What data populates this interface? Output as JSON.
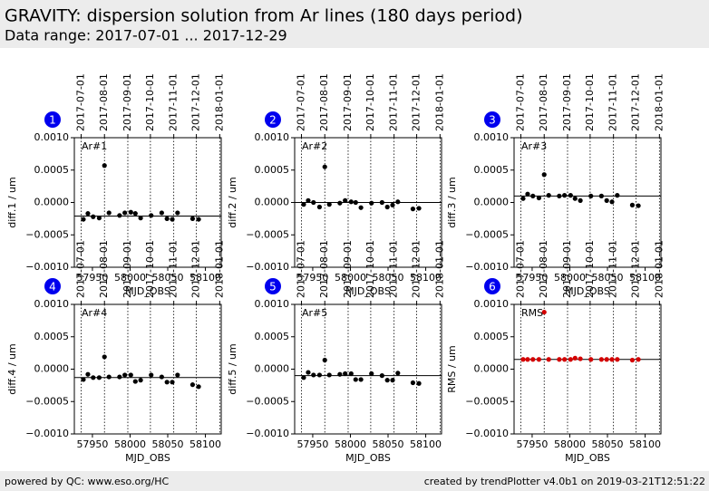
{
  "header": {
    "title": "GRAVITY: dispersion solution from Ar lines (180 days period)",
    "subtitle": "Data range: 2017-07-01 ... 2017-12-29"
  },
  "footer": {
    "left": "powered by QC: www.eso.org/HC",
    "right": "created by trendPlotter v4.0b1 on 2019-03-21T12:51:22"
  },
  "chart_data": [
    {
      "type": "scatter",
      "badge": "1",
      "label": "Ar#1",
      "ylabel": "diff.1 / um",
      "xlabel": "MJD_OBS",
      "color": "#000000",
      "x": [
        57938,
        57944,
        57951,
        57959,
        57966,
        57972,
        57986,
        57993,
        58001,
        58007,
        58014,
        58028,
        58042,
        58049,
        58056,
        58063,
        58083,
        58091
      ],
      "values": [
        -0.00026,
        -0.00017,
        -0.00022,
        -0.00024,
        0.00057,
        -0.00016,
        -0.0002,
        -0.00016,
        -0.00015,
        -0.00017,
        -0.00024,
        -0.0002,
        -0.00016,
        -0.00025,
        -0.00026,
        -0.00016,
        -0.00025,
        -0.00026
      ],
      "reference": -0.00021,
      "xlim": [
        57926,
        58121
      ],
      "xticks": [
        57950,
        58000,
        58050,
        58100
      ],
      "ylim": [
        -0.001,
        0.001
      ],
      "yticks": [
        {
          "value": -0.001,
          "label": "−0.0010"
        },
        {
          "value": -0.0005,
          "label": "−0.0005"
        },
        {
          "value": 0,
          "label": "0.0000"
        },
        {
          "value": 0.0005,
          "label": "0.0005"
        },
        {
          "value": 0.001,
          "label": "0.0010"
        }
      ],
      "date_ticks": [
        {
          "value": 57935,
          "label": "2017-07-01"
        },
        {
          "value": 57966,
          "label": "2017-08-01"
        },
        {
          "value": 57997,
          "label": "2017-09-01"
        },
        {
          "value": 58027,
          "label": "2017-10-01"
        },
        {
          "value": 58058,
          "label": "2017-11-01"
        },
        {
          "value": 58088,
          "label": "2017-12-01"
        },
        {
          "value": 58119,
          "label": "2018-01-01"
        }
      ]
    },
    {
      "type": "scatter",
      "badge": "2",
      "label": "Ar#2",
      "ylabel": "diff.2 / um",
      "xlabel": "MJD_OBS",
      "color": "#000000",
      "x": [
        57938,
        57944,
        57951,
        57959,
        57966,
        57972,
        57986,
        57993,
        58001,
        58007,
        58014,
        58028,
        58042,
        58049,
        58056,
        58063,
        58083,
        58091
      ],
      "values": [
        -3e-05,
        3e-05,
        0,
        -7e-05,
        0.00055,
        -3e-05,
        -1e-05,
        3e-05,
        1e-05,
        0,
        -8e-05,
        -1e-05,
        0,
        -7e-05,
        -4e-05,
        1e-05,
        -0.0001,
        -9e-05
      ],
      "reference": 0,
      "xlim": [
        57926,
        58121
      ],
      "xticks": [
        57950,
        58000,
        58050,
        58100
      ],
      "ylim": [
        -0.001,
        0.001
      ],
      "yticks": [
        {
          "value": -0.001,
          "label": "−0.0010"
        },
        {
          "value": -0.0005,
          "label": "−0.0005"
        },
        {
          "value": 0,
          "label": "0.0000"
        },
        {
          "value": 0.0005,
          "label": "0.0005"
        },
        {
          "value": 0.001,
          "label": "0.0010"
        }
      ],
      "date_ticks": [
        {
          "value": 57935,
          "label": "2017-07-01"
        },
        {
          "value": 57966,
          "label": "2017-08-01"
        },
        {
          "value": 57997,
          "label": "2017-09-01"
        },
        {
          "value": 58027,
          "label": "2017-10-01"
        },
        {
          "value": 58058,
          "label": "2017-11-01"
        },
        {
          "value": 58088,
          "label": "2017-12-01"
        },
        {
          "value": 58119,
          "label": "2018-01-01"
        }
      ]
    },
    {
      "type": "scatter",
      "badge": "3",
      "label": "Ar#3",
      "ylabel": "diff.3 / um",
      "xlabel": "MJD_OBS",
      "color": "#000000",
      "x": [
        57938,
        57944,
        57951,
        57959,
        57966,
        57972,
        57986,
        57993,
        58001,
        58007,
        58014,
        58028,
        58042,
        58049,
        58056,
        58063,
        58083,
        58091
      ],
      "values": [
        6e-05,
        0.00013,
        0.0001,
        7e-05,
        0.00043,
        0.00011,
        0.0001,
        0.00011,
        0.00011,
        6e-05,
        3e-05,
        0.0001,
        0.0001,
        3e-05,
        1e-05,
        0.00011,
        -4e-05,
        -5e-05
      ],
      "reference": 0.0001,
      "xlim": [
        57926,
        58121
      ],
      "xticks": [
        57950,
        58000,
        58050,
        58100
      ],
      "ylim": [
        -0.001,
        0.001
      ],
      "yticks": [
        {
          "value": -0.001,
          "label": "−0.0010"
        },
        {
          "value": -0.0005,
          "label": "−0.0005"
        },
        {
          "value": 0,
          "label": "0.0000"
        },
        {
          "value": 0.0005,
          "label": "0.0005"
        },
        {
          "value": 0.001,
          "label": "0.0010"
        }
      ],
      "date_ticks": [
        {
          "value": 57935,
          "label": "2017-07-01"
        },
        {
          "value": 57966,
          "label": "2017-08-01"
        },
        {
          "value": 57997,
          "label": "2017-09-01"
        },
        {
          "value": 58027,
          "label": "2017-10-01"
        },
        {
          "value": 58058,
          "label": "2017-11-01"
        },
        {
          "value": 58088,
          "label": "2017-12-01"
        },
        {
          "value": 58119,
          "label": "2018-01-01"
        }
      ]
    },
    {
      "type": "scatter",
      "badge": "4",
      "label": "Ar#4",
      "ylabel": "diff.4 / um",
      "xlabel": "MJD_OBS",
      "color": "#000000",
      "x": [
        57938,
        57944,
        57951,
        57959,
        57966,
        57972,
        57986,
        57993,
        58001,
        58007,
        58014,
        58028,
        58042,
        58049,
        58056,
        58063,
        58083,
        58091
      ],
      "values": [
        -0.00016,
        -8e-05,
        -0.00013,
        -0.00013,
        0.00019,
        -0.00012,
        -0.00012,
        -9e-05,
        -9e-05,
        -0.00019,
        -0.00017,
        -9e-05,
        -0.00012,
        -0.0002,
        -0.0002,
        -9e-05,
        -0.00024,
        -0.00027
      ],
      "reference": -0.00013,
      "xlim": [
        57926,
        58121
      ],
      "xticks": [
        57950,
        58000,
        58050,
        58100
      ],
      "ylim": [
        -0.001,
        0.001
      ],
      "yticks": [
        {
          "value": -0.001,
          "label": "−0.0010"
        },
        {
          "value": -0.0005,
          "label": "−0.0005"
        },
        {
          "value": 0,
          "label": "0.0000"
        },
        {
          "value": 0.0005,
          "label": "0.0005"
        },
        {
          "value": 0.001,
          "label": "0.0010"
        }
      ],
      "date_ticks": [
        {
          "value": 57935,
          "label": "2017-07-01"
        },
        {
          "value": 57966,
          "label": "2017-08-01"
        },
        {
          "value": 57997,
          "label": "2017-09-01"
        },
        {
          "value": 58027,
          "label": "2017-10-01"
        },
        {
          "value": 58058,
          "label": "2017-11-01"
        },
        {
          "value": 58088,
          "label": "2017-12-01"
        },
        {
          "value": 58119,
          "label": "2018-01-01"
        }
      ]
    },
    {
      "type": "scatter",
      "badge": "5",
      "label": "Ar#5",
      "ylabel": "diff.5 / um",
      "xlabel": "MJD_OBS",
      "color": "#000000",
      "x": [
        57938,
        57944,
        57951,
        57959,
        57966,
        57972,
        57986,
        57993,
        58001,
        58007,
        58014,
        58028,
        58042,
        58049,
        58056,
        58063,
        58083,
        58091
      ],
      "values": [
        -0.00013,
        -5e-05,
        -9e-05,
        -9e-05,
        0.00014,
        -9e-05,
        -8e-05,
        -7e-05,
        -7e-05,
        -0.00016,
        -0.00016,
        -7e-05,
        -0.0001,
        -0.00017,
        -0.00017,
        -6e-05,
        -0.00021,
        -0.00022
      ],
      "reference": -0.0001,
      "xlim": [
        57926,
        58121
      ],
      "xticks": [
        57950,
        58000,
        58050,
        58100
      ],
      "ylim": [
        -0.001,
        0.001
      ],
      "yticks": [
        {
          "value": -0.001,
          "label": "−0.0010"
        },
        {
          "value": -0.0005,
          "label": "−0.0005"
        },
        {
          "value": 0,
          "label": "0.0000"
        },
        {
          "value": 0.0005,
          "label": "0.0005"
        },
        {
          "value": 0.001,
          "label": "0.0010"
        }
      ],
      "date_ticks": [
        {
          "value": 57935,
          "label": "2017-07-01"
        },
        {
          "value": 57966,
          "label": "2017-08-01"
        },
        {
          "value": 57997,
          "label": "2017-09-01"
        },
        {
          "value": 58027,
          "label": "2017-10-01"
        },
        {
          "value": 58058,
          "label": "2017-11-01"
        },
        {
          "value": 58088,
          "label": "2017-12-01"
        },
        {
          "value": 58119,
          "label": "2018-01-01"
        }
      ]
    },
    {
      "type": "scatter",
      "badge": "6",
      "label": "RMS",
      "ylabel": "RMS / um",
      "xlabel": "MJD_OBS",
      "color": "#d40000",
      "x": [
        57938,
        57944,
        57951,
        57959,
        57966,
        57972,
        57986,
        57993,
        58001,
        58007,
        58014,
        58028,
        58042,
        58049,
        58056,
        58063,
        58083,
        58091
      ],
      "values": [
        0.00015,
        0.00015,
        0.00015,
        0.00015,
        0.00088,
        0.00015,
        0.00015,
        0.00015,
        0.00015,
        0.00017,
        0.00016,
        0.00015,
        0.00015,
        0.00015,
        0.00015,
        0.00015,
        0.00014,
        0.00015
      ],
      "reference": 0.00015,
      "xlim": [
        57926,
        58121
      ],
      "xticks": [
        57950,
        58000,
        58050,
        58100
      ],
      "ylim": [
        -0.001,
        0.001
      ],
      "yticks": [
        {
          "value": -0.001,
          "label": "−0.0010"
        },
        {
          "value": -0.0005,
          "label": "−0.0005"
        },
        {
          "value": 0,
          "label": "0.0000"
        },
        {
          "value": 0.0005,
          "label": "0.0005"
        },
        {
          "value": 0.001,
          "label": "0.0010"
        }
      ],
      "date_ticks": [
        {
          "value": 57935,
          "label": "2017-07-01"
        },
        {
          "value": 57966,
          "label": "2017-08-01"
        },
        {
          "value": 57997,
          "label": "2017-09-01"
        },
        {
          "value": 58027,
          "label": "2017-10-01"
        },
        {
          "value": 58058,
          "label": "2017-11-01"
        },
        {
          "value": 58088,
          "label": "2017-12-01"
        },
        {
          "value": 58119,
          "label": "2018-01-01"
        }
      ]
    }
  ]
}
